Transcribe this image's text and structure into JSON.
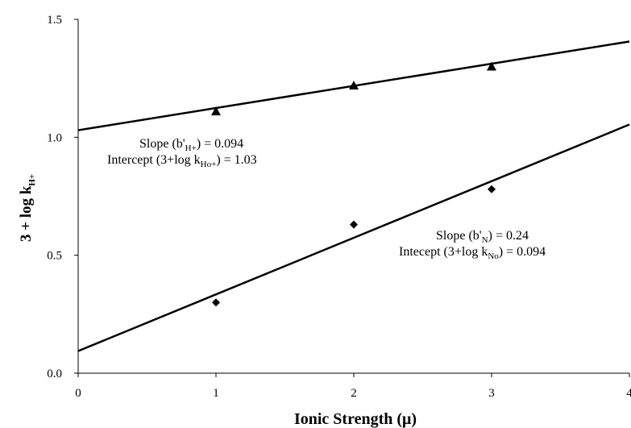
{
  "chart_data": {
    "type": "scatter",
    "x_ticks": [
      "0",
      "1",
      "2",
      "3",
      "4"
    ],
    "y_ticks": [
      "0.0",
      "0.5",
      "1.0",
      "1.5"
    ],
    "xlim": [
      0,
      4
    ],
    "ylim": [
      0,
      1.5
    ],
    "xlabel": "Ionic Strength (μ)",
    "ylabel": {
      "main": "3 + log k",
      "sub": "H+"
    },
    "grid": false,
    "series": [
      {
        "marker": "triangle",
        "color": "#000000",
        "points": [
          [
            1,
            1.11
          ],
          [
            2,
            1.22
          ],
          [
            3,
            1.3
          ]
        ],
        "fit": {
          "slope": 0.094,
          "intercept": 1.03
        }
      },
      {
        "marker": "diamond",
        "color": "#000000",
        "points": [
          [
            1,
            0.3
          ],
          [
            2,
            0.63
          ],
          [
            3,
            0.78
          ]
        ],
        "fit": {
          "slope": 0.24,
          "intercept": 0.094
        }
      }
    ],
    "annotations": [
      {
        "line1": {
          "pre": "Slope (b'",
          "sub": "H+",
          "post": ") = 0.094"
        },
        "line2": {
          "pre": "Intercept (3+log k",
          "sub": "Ho+",
          "post": ") = 1.03"
        }
      },
      {
        "line1": {
          "pre": "Slope (b'",
          "sub": "N",
          "post": ") =  0.24"
        },
        "line2": {
          "pre": "Intecept (3+log k",
          "sub": "No",
          "post": ") = 0.094"
        }
      }
    ]
  }
}
